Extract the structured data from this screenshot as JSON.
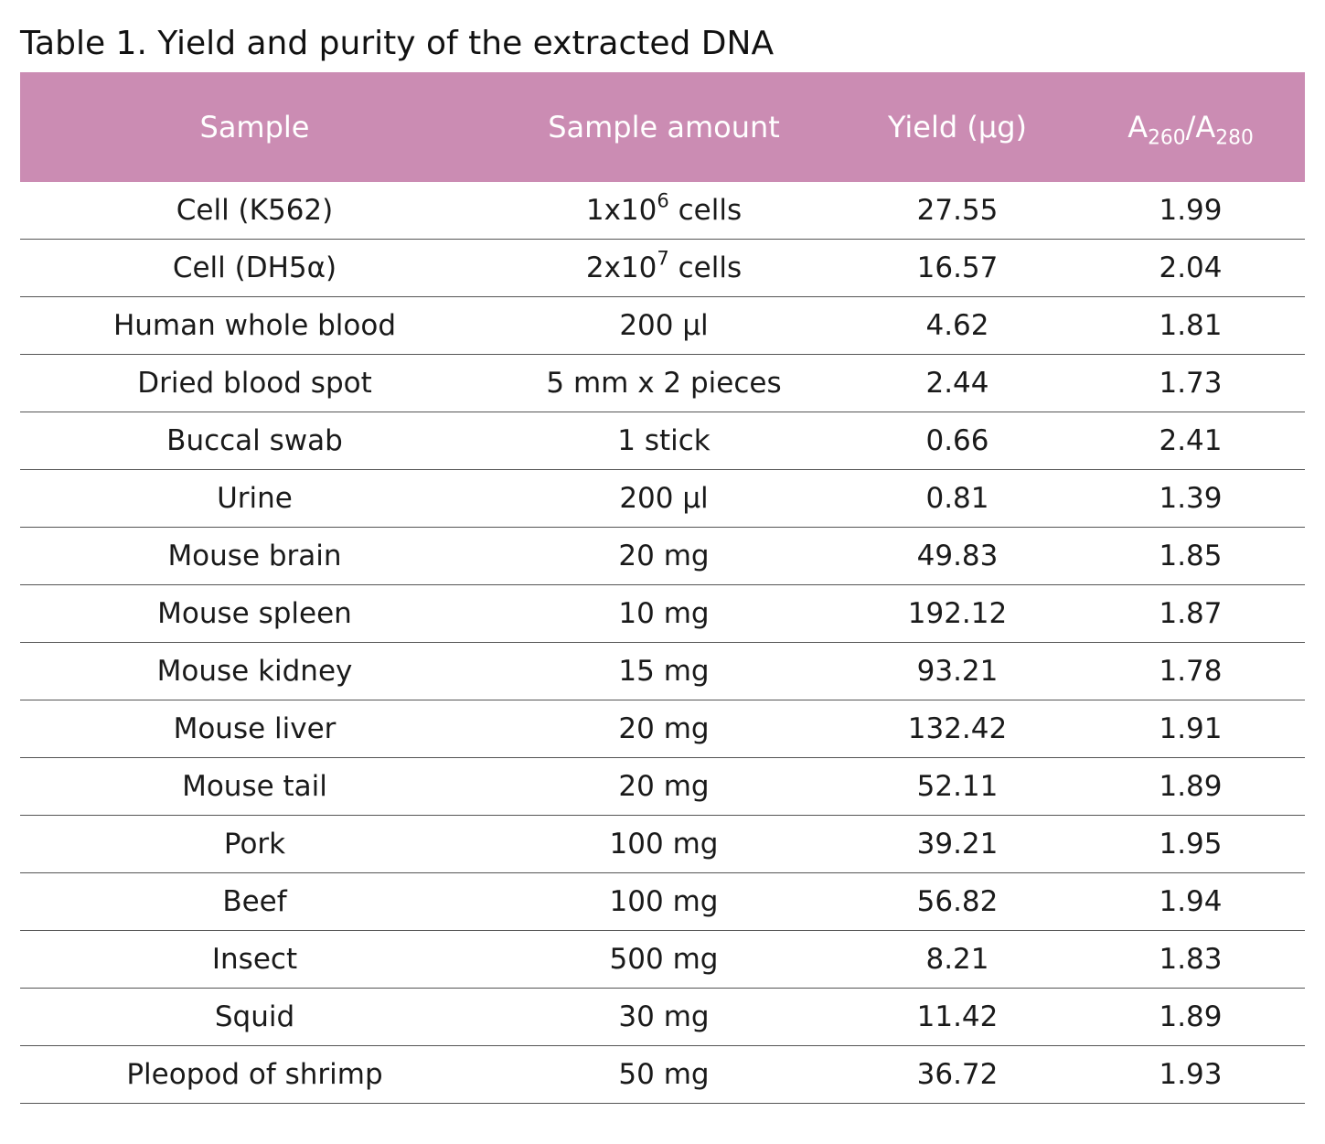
{
  "title": "Table 1. Yield and purity of the extracted DNA",
  "colors": {
    "header_background": "#cb8cb3",
    "header_text": "#ffffff",
    "row_divider": "#555555"
  },
  "headers": {
    "sample": "Sample",
    "amount": "Sample amount",
    "yield": "Yield (µg)",
    "ratio_a": "A",
    "ratio_a_sub": "260",
    "ratio_slash": "/A",
    "ratio_b_sub": "280"
  },
  "rows": [
    {
      "sample": "Cell (K562)",
      "amount_base": "1x10",
      "amount_sup": "6",
      "amount_rest": " cells",
      "yield": "27.55",
      "ratio": "1.99"
    },
    {
      "sample": "Cell (DH5α)",
      "amount_base": "2x10",
      "amount_sup": "7",
      "amount_rest": " cells",
      "yield": "16.57",
      "ratio": "2.04"
    },
    {
      "sample": "Human whole blood",
      "amount_base": "200 µl",
      "amount_sup": "",
      "amount_rest": "",
      "yield": "4.62",
      "ratio": "1.81"
    },
    {
      "sample": "Dried blood spot",
      "amount_base": "5 mm x 2 pieces",
      "amount_sup": "",
      "amount_rest": "",
      "yield": "2.44",
      "ratio": "1.73"
    },
    {
      "sample": "Buccal swab",
      "amount_base": "1 stick",
      "amount_sup": "",
      "amount_rest": "",
      "yield": "0.66",
      "ratio": "2.41"
    },
    {
      "sample": "Urine",
      "amount_base": "200 µl",
      "amount_sup": "",
      "amount_rest": "",
      "yield": "0.81",
      "ratio": "1.39"
    },
    {
      "sample": "Mouse brain",
      "amount_base": "20 mg",
      "amount_sup": "",
      "amount_rest": "",
      "yield": "49.83",
      "ratio": "1.85"
    },
    {
      "sample": "Mouse spleen",
      "amount_base": "10 mg",
      "amount_sup": "",
      "amount_rest": "",
      "yield": "192.12",
      "ratio": "1.87"
    },
    {
      "sample": "Mouse kidney",
      "amount_base": "15 mg",
      "amount_sup": "",
      "amount_rest": "",
      "yield": "93.21",
      "ratio": "1.78"
    },
    {
      "sample": "Mouse liver",
      "amount_base": "20 mg",
      "amount_sup": "",
      "amount_rest": "",
      "yield": "132.42",
      "ratio": "1.91"
    },
    {
      "sample": "Mouse tail",
      "amount_base": "20 mg",
      "amount_sup": "",
      "amount_rest": "",
      "yield": "52.11",
      "ratio": "1.89"
    },
    {
      "sample": "Pork",
      "amount_base": "100 mg",
      "amount_sup": "",
      "amount_rest": "",
      "yield": "39.21",
      "ratio": "1.95"
    },
    {
      "sample": "Beef",
      "amount_base": "100 mg",
      "amount_sup": "",
      "amount_rest": "",
      "yield": "56.82",
      "ratio": "1.94"
    },
    {
      "sample": "Insect",
      "amount_base": "500 mg",
      "amount_sup": "",
      "amount_rest": "",
      "yield": "8.21",
      "ratio": "1.83"
    },
    {
      "sample": "Squid",
      "amount_base": "30 mg",
      "amount_sup": "",
      "amount_rest": "",
      "yield": "11.42",
      "ratio": "1.89"
    },
    {
      "sample": "Pleopod of shrimp",
      "amount_base": "50 mg",
      "amount_sup": "",
      "amount_rest": "",
      "yield": "36.72",
      "ratio": "1.93"
    }
  ]
}
